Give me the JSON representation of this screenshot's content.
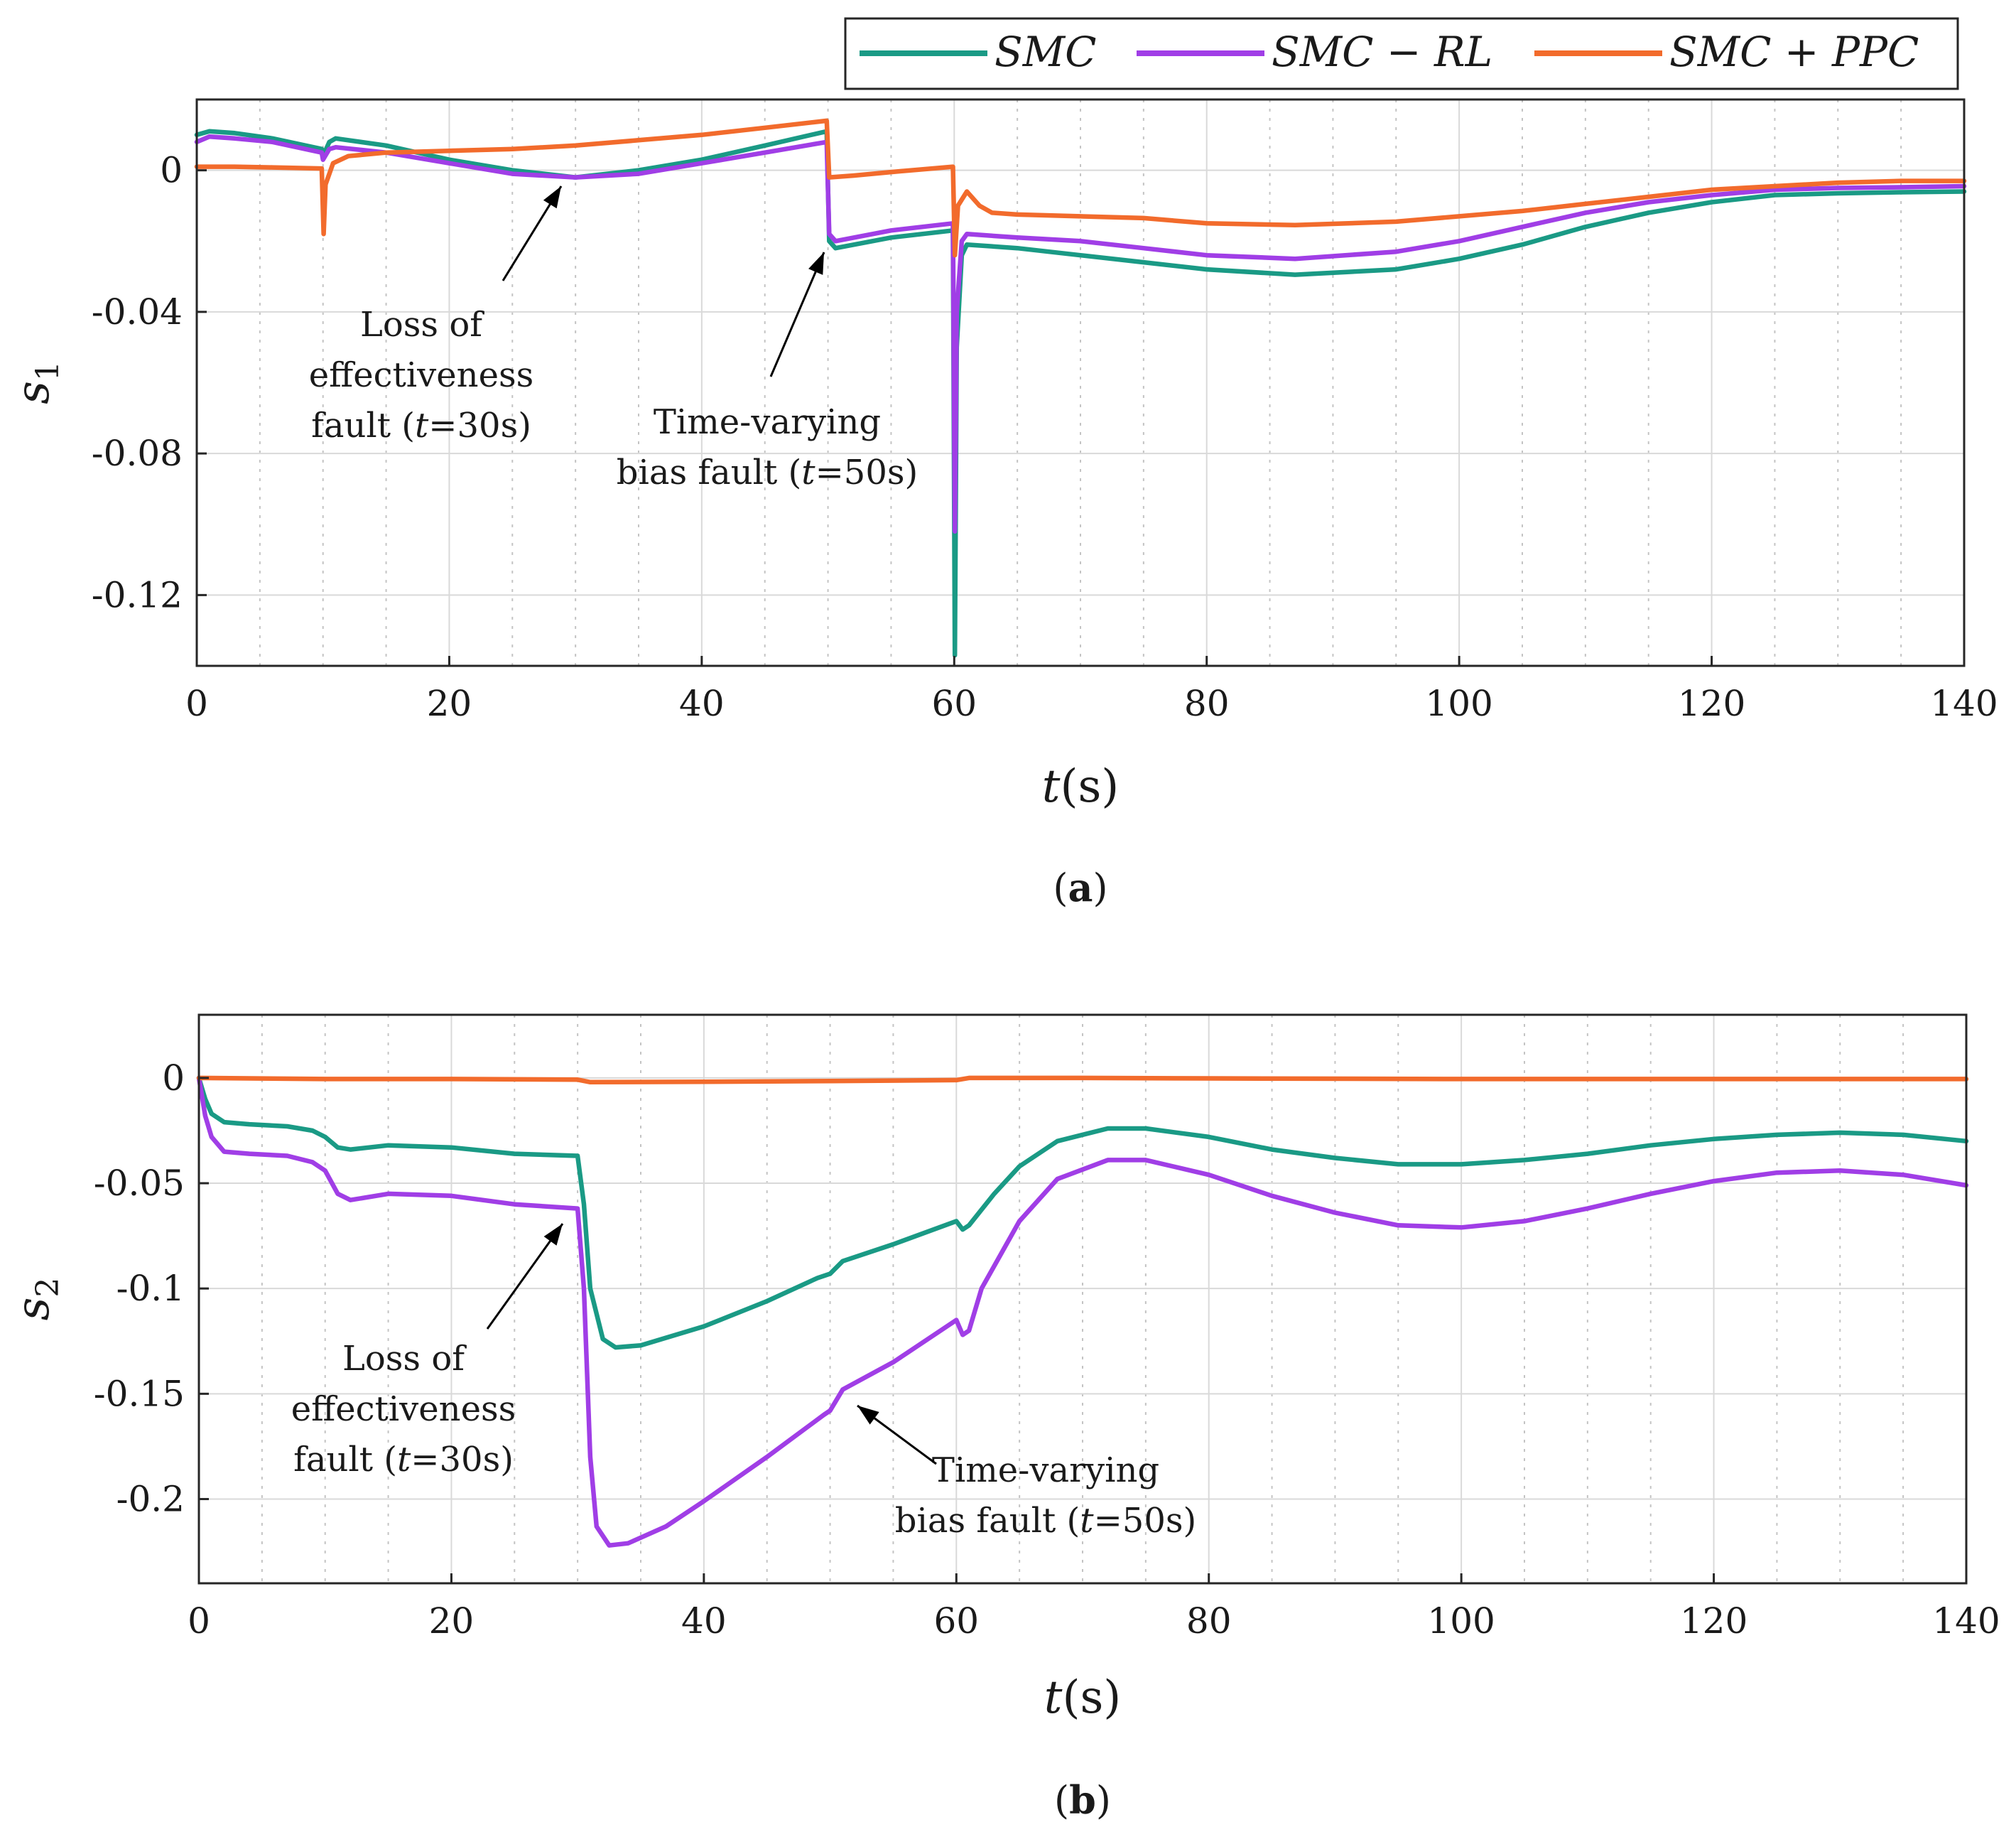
{
  "legend": [
    {
      "label": "SMC",
      "color": "#1a9a85"
    },
    {
      "label": "SMC − RL",
      "color": "#a03ee6"
    },
    {
      "label": "SMC + PPC",
      "color": "#f26b2c"
    }
  ],
  "chart_data": [
    {
      "type": "line",
      "panel": "a",
      "caption_letter": "a",
      "xlabel_var": "t",
      "xlabel_unit": "(s)",
      "ylabel_var": "s",
      "ylabel_sub": "1",
      "xlim": [
        0,
        140
      ],
      "ylim": [
        -0.14,
        0.02
      ],
      "xticks": [
        0,
        20,
        40,
        60,
        80,
        100,
        120,
        140
      ],
      "xtick_labels": [
        "0",
        "20",
        "40",
        "60",
        "80",
        "100",
        "120",
        "140"
      ],
      "yticks": [
        0,
        -0.04,
        -0.08,
        -0.12
      ],
      "ytick_labels": [
        "0",
        "-0.04",
        "-0.08",
        "-0.12"
      ],
      "annotations": [
        {
          "name": "loss-fault",
          "lines": [
            "Loss of",
            "effectiveness",
            "fault (",
            "t",
            "=30s)"
          ],
          "arrow_to": [
            29,
            -0.006
          ]
        },
        {
          "name": "bias-fault",
          "lines": [
            "Time-varying",
            "bias fault (",
            "t",
            "=50s)"
          ],
          "arrow_to": [
            49.8,
            -0.023
          ]
        }
      ],
      "series": [
        {
          "name": "SMC",
          "color": "#1a9a85",
          "points": [
            [
              0,
              0.01
            ],
            [
              1,
              0.011
            ],
            [
              3,
              0.0105
            ],
            [
              6,
              0.009
            ],
            [
              9.9,
              0.006
            ],
            [
              10,
              0.004
            ],
            [
              10.5,
              0.008
            ],
            [
              11,
              0.009
            ],
            [
              15,
              0.007
            ],
            [
              20,
              0.003
            ],
            [
              25,
              0.0
            ],
            [
              30,
              -0.002
            ],
            [
              35,
              0.0
            ],
            [
              40,
              0.003
            ],
            [
              45,
              0.007
            ],
            [
              49.9,
              0.011
            ],
            [
              50.1,
              -0.02
            ],
            [
              50.6,
              -0.022
            ],
            [
              55,
              -0.019
            ],
            [
              59.9,
              -0.017
            ],
            [
              60.05,
              -0.137
            ],
            [
              60.2,
              -0.05
            ],
            [
              60.6,
              -0.024
            ],
            [
              61,
              -0.021
            ],
            [
              65,
              -0.022
            ],
            [
              70,
              -0.024
            ],
            [
              75,
              -0.026
            ],
            [
              80,
              -0.028
            ],
            [
              87,
              -0.0295
            ],
            [
              95,
              -0.028
            ],
            [
              100,
              -0.025
            ],
            [
              105,
              -0.021
            ],
            [
              110,
              -0.016
            ],
            [
              115,
              -0.012
            ],
            [
              120,
              -0.009
            ],
            [
              125,
              -0.007
            ],
            [
              130,
              -0.0065
            ],
            [
              135,
              -0.0062
            ],
            [
              140,
              -0.006
            ]
          ]
        },
        {
          "name": "SMC − RL",
          "color": "#a03ee6",
          "points": [
            [
              0,
              0.008
            ],
            [
              1,
              0.0095
            ],
            [
              3,
              0.009
            ],
            [
              6,
              0.008
            ],
            [
              9.9,
              0.005
            ],
            [
              10,
              0.003
            ],
            [
              10.5,
              0.006
            ],
            [
              11,
              0.0065
            ],
            [
              15,
              0.005
            ],
            [
              20,
              0.002
            ],
            [
              25,
              -0.001
            ],
            [
              30,
              -0.002
            ],
            [
              35,
              -0.001
            ],
            [
              40,
              0.002
            ],
            [
              45,
              0.005
            ],
            [
              49.9,
              0.008
            ],
            [
              50.1,
              -0.018
            ],
            [
              50.6,
              -0.02
            ],
            [
              55,
              -0.017
            ],
            [
              59.9,
              -0.015
            ],
            [
              60.05,
              -0.102
            ],
            [
              60.2,
              -0.04
            ],
            [
              60.6,
              -0.02
            ],
            [
              61,
              -0.018
            ],
            [
              65,
              -0.019
            ],
            [
              70,
              -0.02
            ],
            [
              75,
              -0.022
            ],
            [
              80,
              -0.024
            ],
            [
              87,
              -0.025
            ],
            [
              95,
              -0.023
            ],
            [
              100,
              -0.02
            ],
            [
              105,
              -0.016
            ],
            [
              110,
              -0.012
            ],
            [
              115,
              -0.009
            ],
            [
              120,
              -0.007
            ],
            [
              125,
              -0.0055
            ],
            [
              130,
              -0.005
            ],
            [
              135,
              -0.0048
            ],
            [
              140,
              -0.0045
            ]
          ]
        },
        {
          "name": "SMC + PPC",
          "color": "#f26b2c",
          "points": [
            [
              0,
              0.001
            ],
            [
              3,
              0.001
            ],
            [
              6,
              0.0008
            ],
            [
              9.9,
              0.0005
            ],
            [
              10.05,
              -0.018
            ],
            [
              10.2,
              -0.004
            ],
            [
              10.8,
              0.002
            ],
            [
              12,
              0.004
            ],
            [
              15,
              0.005
            ],
            [
              20,
              0.0055
            ],
            [
              25,
              0.006
            ],
            [
              30,
              0.007
            ],
            [
              35,
              0.0085
            ],
            [
              40,
              0.01
            ],
            [
              45,
              0.012
            ],
            [
              49.9,
              0.014
            ],
            [
              50.1,
              -0.002
            ],
            [
              52,
              -0.0015
            ],
            [
              55,
              -0.0005
            ],
            [
              59.9,
              0.001
            ],
            [
              60.05,
              -0.024
            ],
            [
              60.3,
              -0.01
            ],
            [
              61,
              -0.006
            ],
            [
              62,
              -0.01
            ],
            [
              63,
              -0.012
            ],
            [
              65,
              -0.0125
            ],
            [
              70,
              -0.013
            ],
            [
              75,
              -0.0135
            ],
            [
              80,
              -0.015
            ],
            [
              87,
              -0.0155
            ],
            [
              95,
              -0.0145
            ],
            [
              100,
              -0.013
            ],
            [
              105,
              -0.0115
            ],
            [
              110,
              -0.0095
            ],
            [
              115,
              -0.0075
            ],
            [
              120,
              -0.0055
            ],
            [
              125,
              -0.0045
            ],
            [
              130,
              -0.0035
            ],
            [
              135,
              -0.003
            ],
            [
              140,
              -0.003
            ]
          ]
        }
      ]
    },
    {
      "type": "line",
      "panel": "b",
      "caption_letter": "b",
      "xlabel_var": "t",
      "xlabel_unit": "(s)",
      "ylabel_var": "s",
      "ylabel_sub": "2",
      "xlim": [
        0,
        140
      ],
      "ylim": [
        -0.24,
        0.03
      ],
      "xticks": [
        0,
        20,
        40,
        60,
        80,
        100,
        120,
        140
      ],
      "xtick_labels": [
        "0",
        "20",
        "40",
        "60",
        "80",
        "100",
        "120",
        "140"
      ],
      "yticks": [
        0,
        -0.05,
        -0.1,
        -0.15,
        -0.2
      ],
      "ytick_labels": [
        "0",
        "-0.05",
        "-0.1",
        "-0.15",
        "-0.2"
      ],
      "annotations": [
        {
          "name": "loss-fault",
          "lines": [
            "Loss of",
            "effectiveness",
            "fault (",
            "t",
            "=30s)"
          ],
          "arrow_to": [
            28.8,
            -0.069
          ]
        },
        {
          "name": "bias-fault",
          "lines": [
            "Time-varying",
            "bias fault (",
            "t",
            "=50s)"
          ],
          "arrow_to": [
            52,
            -0.155
          ]
        }
      ],
      "series": [
        {
          "name": "SMC",
          "color": "#1a9a85",
          "points": [
            [
              0,
              0
            ],
            [
              0.5,
              -0.01
            ],
            [
              1,
              -0.017
            ],
            [
              2,
              -0.021
            ],
            [
              4,
              -0.022
            ],
            [
              7,
              -0.023
            ],
            [
              9,
              -0.025
            ],
            [
              10,
              -0.028
            ],
            [
              11,
              -0.033
            ],
            [
              12,
              -0.034
            ],
            [
              15,
              -0.032
            ],
            [
              20,
              -0.033
            ],
            [
              25,
              -0.036
            ],
            [
              30,
              -0.037
            ],
            [
              30.5,
              -0.06
            ],
            [
              31,
              -0.1
            ],
            [
              32,
              -0.124
            ],
            [
              33,
              -0.128
            ],
            [
              35,
              -0.127
            ],
            [
              40,
              -0.118
            ],
            [
              45,
              -0.106
            ],
            [
              49,
              -0.095
            ],
            [
              50,
              -0.093
            ],
            [
              51,
              -0.087
            ],
            [
              55,
              -0.079
            ],
            [
              60,
              -0.068
            ],
            [
              60.5,
              -0.072
            ],
            [
              61,
              -0.07
            ],
            [
              63,
              -0.055
            ],
            [
              65,
              -0.042
            ],
            [
              68,
              -0.03
            ],
            [
              72,
              -0.024
            ],
            [
              75,
              -0.024
            ],
            [
              80,
              -0.028
            ],
            [
              85,
              -0.034
            ],
            [
              90,
              -0.038
            ],
            [
              95,
              -0.041
            ],
            [
              100,
              -0.041
            ],
            [
              105,
              -0.039
            ],
            [
              110,
              -0.036
            ],
            [
              115,
              -0.032
            ],
            [
              120,
              -0.029
            ],
            [
              125,
              -0.027
            ],
            [
              130,
              -0.026
            ],
            [
              135,
              -0.027
            ],
            [
              140,
              -0.03
            ]
          ]
        },
        {
          "name": "SMC − RL",
          "color": "#a03ee6",
          "points": [
            [
              0,
              0
            ],
            [
              0.5,
              -0.018
            ],
            [
              1,
              -0.028
            ],
            [
              2,
              -0.035
            ],
            [
              4,
              -0.036
            ],
            [
              7,
              -0.037
            ],
            [
              9,
              -0.04
            ],
            [
              10,
              -0.044
            ],
            [
              11,
              -0.055
            ],
            [
              12,
              -0.058
            ],
            [
              15,
              -0.055
            ],
            [
              20,
              -0.056
            ],
            [
              25,
              -0.06
            ],
            [
              30,
              -0.062
            ],
            [
              30.5,
              -0.1
            ],
            [
              31,
              -0.18
            ],
            [
              31.5,
              -0.213
            ],
            [
              32.5,
              -0.222
            ],
            [
              34,
              -0.221
            ],
            [
              37,
              -0.213
            ],
            [
              40,
              -0.201
            ],
            [
              45,
              -0.18
            ],
            [
              49.5,
              -0.16
            ],
            [
              50,
              -0.158
            ],
            [
              51,
              -0.148
            ],
            [
              55,
              -0.135
            ],
            [
              60,
              -0.115
            ],
            [
              60.5,
              -0.122
            ],
            [
              61,
              -0.12
            ],
            [
              62,
              -0.1
            ],
            [
              65,
              -0.068
            ],
            [
              68,
              -0.048
            ],
            [
              72,
              -0.039
            ],
            [
              75,
              -0.039
            ],
            [
              80,
              -0.046
            ],
            [
              85,
              -0.056
            ],
            [
              90,
              -0.064
            ],
            [
              95,
              -0.07
            ],
            [
              100,
              -0.071
            ],
            [
              105,
              -0.068
            ],
            [
              110,
              -0.062
            ],
            [
              115,
              -0.055
            ],
            [
              120,
              -0.049
            ],
            [
              125,
              -0.045
            ],
            [
              130,
              -0.044
            ],
            [
              135,
              -0.046
            ],
            [
              140,
              -0.051
            ]
          ]
        },
        {
          "name": "SMC + PPC",
          "color": "#f26b2c",
          "points": [
            [
              0,
              0
            ],
            [
              10,
              -0.0005
            ],
            [
              20,
              -0.0005
            ],
            [
              30,
              -0.0008
            ],
            [
              31,
              -0.002
            ],
            [
              40,
              -0.0018
            ],
            [
              50,
              -0.0015
            ],
            [
              60,
              -0.001
            ],
            [
              61,
              0
            ],
            [
              70,
              0
            ],
            [
              80,
              -0.0002
            ],
            [
              100,
              -0.0005
            ],
            [
              120,
              -0.0005
            ],
            [
              140,
              -0.0005
            ]
          ]
        }
      ]
    }
  ]
}
